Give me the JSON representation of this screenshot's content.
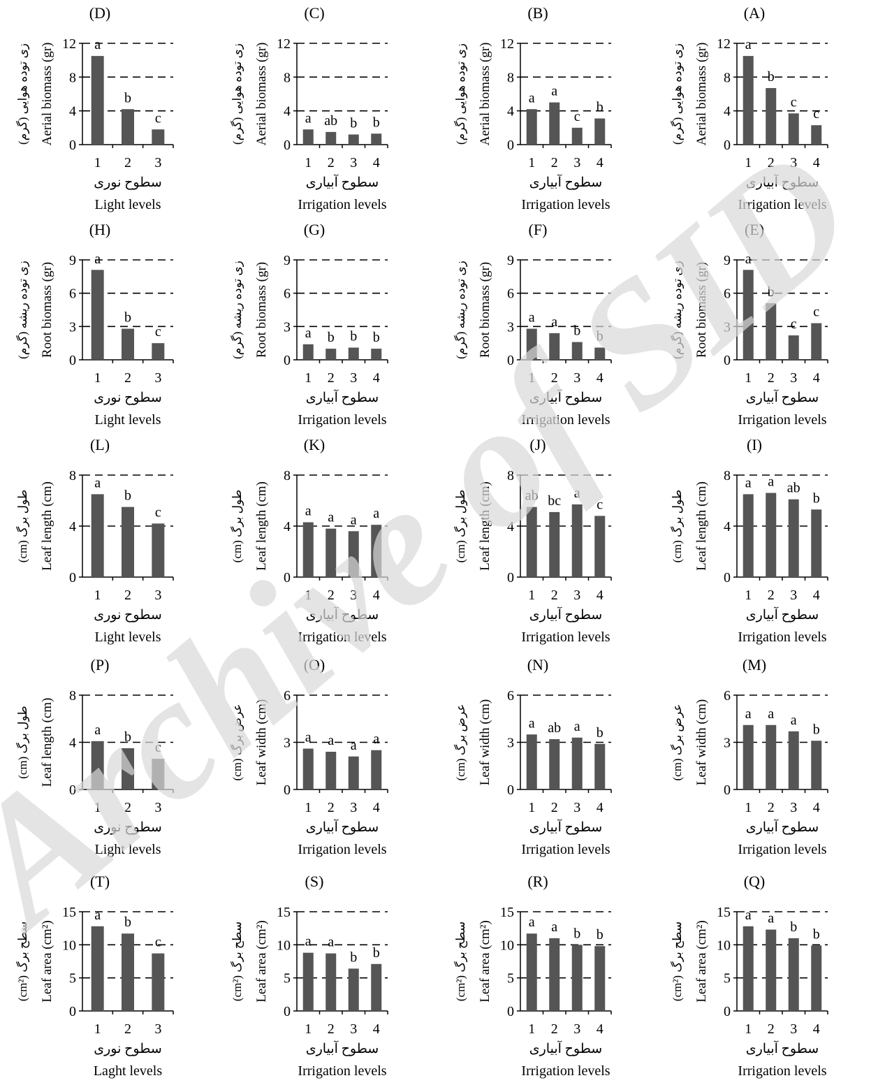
{
  "watermark": "Archive of SID",
  "chart_data": [
    {
      "panel": "(A)",
      "type": "bar",
      "categories": [
        "1",
        "2",
        "3",
        "4"
      ],
      "values": [
        10.5,
        6.7,
        3.7,
        2.3
      ],
      "letters": [
        "a",
        "b",
        "c",
        "c"
      ],
      "ylim": [
        0,
        12
      ],
      "yticks": [
        "0",
        "4",
        "8",
        "12"
      ],
      "ylabel": "Aerial biomass (gr)",
      "ylabel_fa": "زی توده هوایی (گرم)",
      "xlabel_fa": "سطوح آبیاری",
      "xlabel": "Irrigation levels",
      "grid": "dashed"
    },
    {
      "panel": "(B)",
      "type": "bar",
      "categories": [
        "1",
        "2",
        "3",
        "4"
      ],
      "values": [
        4.2,
        5.0,
        2.0,
        3.1
      ],
      "letters": [
        "a",
        "a",
        "c",
        "b"
      ],
      "ylim": [
        0,
        12
      ],
      "yticks": [
        "0",
        "4",
        "8",
        "12"
      ],
      "ylabel": "Aerial biomass (gr)",
      "ylabel_fa": "زی توده هوایی (گرم)",
      "xlabel_fa": "سطوح آبیاری",
      "xlabel": "Irrigation levels",
      "grid": "dashed"
    },
    {
      "panel": "(C)",
      "type": "bar",
      "categories": [
        "1",
        "2",
        "3",
        "4"
      ],
      "values": [
        1.8,
        1.5,
        1.2,
        1.3
      ],
      "letters": [
        "a",
        "ab",
        "b",
        "b"
      ],
      "ylim": [
        0,
        12
      ],
      "yticks": [
        "0",
        "4",
        "8",
        "12"
      ],
      "ylabel": "Aerial biomass (gr)",
      "ylabel_fa": "زی توده هوایی (گرم)",
      "xlabel_fa": "سطوح آبیاری",
      "xlabel": "Irrigation levels",
      "grid": "dashed"
    },
    {
      "panel": "(D)",
      "type": "bar",
      "categories": [
        "1",
        "2",
        "3"
      ],
      "values": [
        10.5,
        4.2,
        1.8
      ],
      "letters": [
        "a",
        "b",
        "c"
      ],
      "ylim": [
        0,
        12
      ],
      "yticks": [
        "0",
        "4",
        "8",
        "12"
      ],
      "ylabel": "Aerial biomass (gr)",
      "ylabel_fa": "زی توده هوایی (گرم)",
      "xlabel_fa": "سطوح نوری",
      "xlabel": "Light levels",
      "grid": "dashed"
    },
    {
      "panel": "(E)",
      "type": "bar",
      "categories": [
        "1",
        "2",
        "3",
        "4"
      ],
      "values": [
        8.1,
        5.1,
        2.2,
        3.3
      ],
      "letters": [
        "a",
        "b",
        "c",
        "c"
      ],
      "ylim": [
        0,
        9
      ],
      "yticks": [
        "0",
        "3",
        "6",
        "9"
      ],
      "ylabel": "Root biomass (gr)",
      "ylabel_fa": "زی توده ریشه (گرم)",
      "xlabel_fa": "سطوح آبیاری",
      "xlabel": "Irrigation levels",
      "grid": "dashed"
    },
    {
      "panel": "(F)",
      "type": "bar",
      "categories": [
        "1",
        "2",
        "3",
        "4"
      ],
      "values": [
        2.8,
        2.4,
        1.6,
        1.1
      ],
      "letters": [
        "a",
        "a",
        "b",
        "b"
      ],
      "ylim": [
        0,
        9
      ],
      "yticks": [
        "0",
        "3",
        "6",
        "9"
      ],
      "ylabel": "Root biomass (gr)",
      "ylabel_fa": "زی توده ریشه (گرم)",
      "xlabel_fa": "سطوح آبیاری",
      "xlabel": "Irrigation levels",
      "grid": "dashed"
    },
    {
      "panel": "(G)",
      "type": "bar",
      "categories": [
        "1",
        "2",
        "3",
        "4"
      ],
      "values": [
        1.4,
        1.0,
        1.1,
        1.0
      ],
      "letters": [
        "a",
        "b",
        "b",
        "b"
      ],
      "ylim": [
        0,
        9
      ],
      "yticks": [
        "0",
        "3",
        "6",
        "9"
      ],
      "ylabel": "Root biomass (gr)",
      "ylabel_fa": "زی توده ریشه (گرم)",
      "xlabel_fa": "سطوح آبیاری",
      "xlabel": "Irrigation levels",
      "grid": "dashed"
    },
    {
      "panel": "(H)",
      "type": "bar",
      "categories": [
        "1",
        "2",
        "3"
      ],
      "values": [
        8.1,
        2.8,
        1.5
      ],
      "letters": [
        "a",
        "b",
        "c"
      ],
      "ylim": [
        0,
        9
      ],
      "yticks": [
        "0",
        "3",
        "6",
        "9"
      ],
      "ylabel": "Root biomass (gr)",
      "ylabel_fa": "زی توده ریشه (گرم)",
      "xlabel_fa": "سطوح نوری",
      "xlabel": "Light levels",
      "grid": "dashed"
    },
    {
      "panel": "(I)",
      "type": "bar",
      "categories": [
        "1",
        "2",
        "3",
        "4"
      ],
      "values": [
        6.5,
        6.6,
        6.1,
        5.3
      ],
      "letters": [
        "a",
        "a",
        "ab",
        "b"
      ],
      "ylim": [
        0,
        8
      ],
      "yticks": [
        "0",
        "4",
        "8"
      ],
      "ylabel": "Leaf length (cm)",
      "ylabel_fa": "طول برگ (cm)",
      "xlabel_fa": "سطوح آبیاری",
      "xlabel": "Irrigation levels",
      "grid": "dashed"
    },
    {
      "panel": "(J)",
      "type": "bar",
      "categories": [
        "1",
        "2",
        "3",
        "4"
      ],
      "values": [
        5.5,
        5.1,
        5.7,
        4.8
      ],
      "letters": [
        "ab",
        "bc",
        "a",
        "c"
      ],
      "ylim": [
        0,
        8
      ],
      "yticks": [
        "0",
        "4",
        "8"
      ],
      "ylabel": "Leaf length (cm)",
      "ylabel_fa": "طول برگ (cm)",
      "xlabel_fa": "سطوح آبیاری",
      "xlabel": "Irrigation levels",
      "grid": "dashed"
    },
    {
      "panel": "(K)",
      "type": "bar",
      "categories": [
        "1",
        "2",
        "3",
        "4"
      ],
      "values": [
        4.3,
        3.8,
        3.6,
        4.1
      ],
      "letters": [
        "a",
        "a",
        "a",
        "a"
      ],
      "ylim": [
        0,
        8
      ],
      "yticks": [
        "0",
        "4",
        "8"
      ],
      "ylabel": "Leaf length (cm)",
      "ylabel_fa": "طول برگ (cm)",
      "xlabel_fa": "سطوح آبیاری",
      "xlabel": "Irrigation levels",
      "grid": "dashed"
    },
    {
      "panel": "(L)",
      "type": "bar",
      "categories": [
        "1",
        "2",
        "3"
      ],
      "values": [
        6.5,
        5.5,
        4.2
      ],
      "letters": [
        "a",
        "b",
        "c"
      ],
      "ylim": [
        0,
        8
      ],
      "yticks": [
        "0",
        "4",
        "8"
      ],
      "ylabel": "Leaf length (cm)",
      "ylabel_fa": "طول برگ (cm)",
      "xlabel_fa": "سطوح نوری",
      "xlabel": "Light levels",
      "grid": "dashed"
    },
    {
      "panel": "(M)",
      "type": "bar",
      "categories": [
        "1",
        "2",
        "3",
        "4"
      ],
      "values": [
        4.1,
        4.1,
        3.7,
        3.1
      ],
      "letters": [
        "a",
        "a",
        "a",
        "b"
      ],
      "ylim": [
        0,
        6
      ],
      "yticks": [
        "0",
        "3",
        "6"
      ],
      "ylabel": "Leaf width (cm)",
      "ylabel_fa": "عرض برگ (cm)",
      "xlabel_fa": "سطوح آبیاری",
      "xlabel": "Irrigation levels",
      "grid": "dashed"
    },
    {
      "panel": "(N)",
      "type": "bar",
      "categories": [
        "1",
        "2",
        "3",
        "4"
      ],
      "values": [
        3.5,
        3.2,
        3.3,
        2.9
      ],
      "letters": [
        "a",
        "ab",
        "a",
        "b"
      ],
      "ylim": [
        0,
        6
      ],
      "yticks": [
        "0",
        "3",
        "6"
      ],
      "ylabel": "Leaf width (cm)",
      "ylabel_fa": "عرض برگ (cm)",
      "xlabel_fa": "سطوح آبیاری",
      "xlabel": "Irrigation levels",
      "grid": "dashed"
    },
    {
      "panel": "(O)",
      "type": "bar",
      "categories": [
        "1",
        "2",
        "3",
        "4"
      ],
      "values": [
        2.6,
        2.4,
        2.1,
        2.5
      ],
      "letters": [
        "a",
        "a",
        "a",
        "a"
      ],
      "ylim": [
        0,
        6
      ],
      "yticks": [
        "0",
        "3",
        "6"
      ],
      "ylabel": "Leaf width (cm)",
      "ylabel_fa": "عرض برگ (cm)",
      "xlabel_fa": "سطوح آبیاری",
      "xlabel": "Irrigation levels",
      "grid": "dashed"
    },
    {
      "panel": "(P)",
      "type": "bar",
      "categories": [
        "1",
        "2",
        "3"
      ],
      "values": [
        4.1,
        3.5,
        2.6
      ],
      "letters": [
        "a",
        "b",
        "c"
      ],
      "ylim": [
        0,
        8
      ],
      "yticks": [
        "0",
        "4",
        "8"
      ],
      "ylabel": "Leaf length (cm)",
      "ylabel_fa": "طول برگ (cm)",
      "xlabel_fa": "سطوح نوری",
      "xlabel": "Light levels",
      "grid": "dashed"
    },
    {
      "panel": "(Q)",
      "type": "bar",
      "categories": [
        "1",
        "2",
        "3",
        "4"
      ],
      "values": [
        12.8,
        12.3,
        11.0,
        9.9
      ],
      "letters": [
        "a",
        "a",
        "b",
        "b"
      ],
      "ylim": [
        0,
        15
      ],
      "yticks": [
        "0",
        "5",
        "10",
        "15"
      ],
      "ylabel": "Leaf area (cm²)",
      "ylabel_fa": "سطح برگ (cm²)",
      "xlabel_fa": "سطوح آبیاری",
      "xlabel": "Irrigation levels",
      "grid": "dashed"
    },
    {
      "panel": "(R)",
      "type": "bar",
      "categories": [
        "1",
        "2",
        "3",
        "4"
      ],
      "values": [
        11.7,
        11.0,
        10.0,
        9.8
      ],
      "letters": [
        "a",
        "a",
        "b",
        "b"
      ],
      "ylim": [
        0,
        15
      ],
      "yticks": [
        "0",
        "5",
        "10",
        "15"
      ],
      "ylabel": "Leaf area (cm²)",
      "ylabel_fa": "سطح برگ (cm²)",
      "xlabel_fa": "سطوح آبیاری",
      "xlabel": "Irrigation levels",
      "grid": "dashed"
    },
    {
      "panel": "(S)",
      "type": "bar",
      "categories": [
        "1",
        "2",
        "3",
        "4"
      ],
      "values": [
        8.8,
        8.7,
        6.4,
        7.1
      ],
      "letters": [
        "a",
        "a",
        "b",
        "b"
      ],
      "ylim": [
        0,
        15
      ],
      "yticks": [
        "0",
        "5",
        "10",
        "15"
      ],
      "ylabel": "Leaf area (cm²)",
      "ylabel_fa": "سطح برگ (cm²)",
      "xlabel_fa": "سطوح آبیاری",
      "xlabel": "Irrigation levels",
      "grid": "dashed"
    },
    {
      "panel": "(T)",
      "type": "bar",
      "categories": [
        "1",
        "2",
        "3"
      ],
      "values": [
        12.8,
        11.7,
        8.7
      ],
      "letters": [
        "a",
        "b",
        "c"
      ],
      "ylim": [
        0,
        15
      ],
      "yticks": [
        "0",
        "5",
        "10",
        "15"
      ],
      "ylabel": "Leaf area (cm²)",
      "ylabel_fa": "سطح برگ (cm²)",
      "xlabel_fa": "سطوح نوری",
      "xlabel": "Laght levels",
      "grid": "dashed"
    }
  ],
  "colors": {
    "bar": "#555555",
    "axis": "#000000",
    "grid": "#000000",
    "watermark": "#d8d8d8"
  }
}
